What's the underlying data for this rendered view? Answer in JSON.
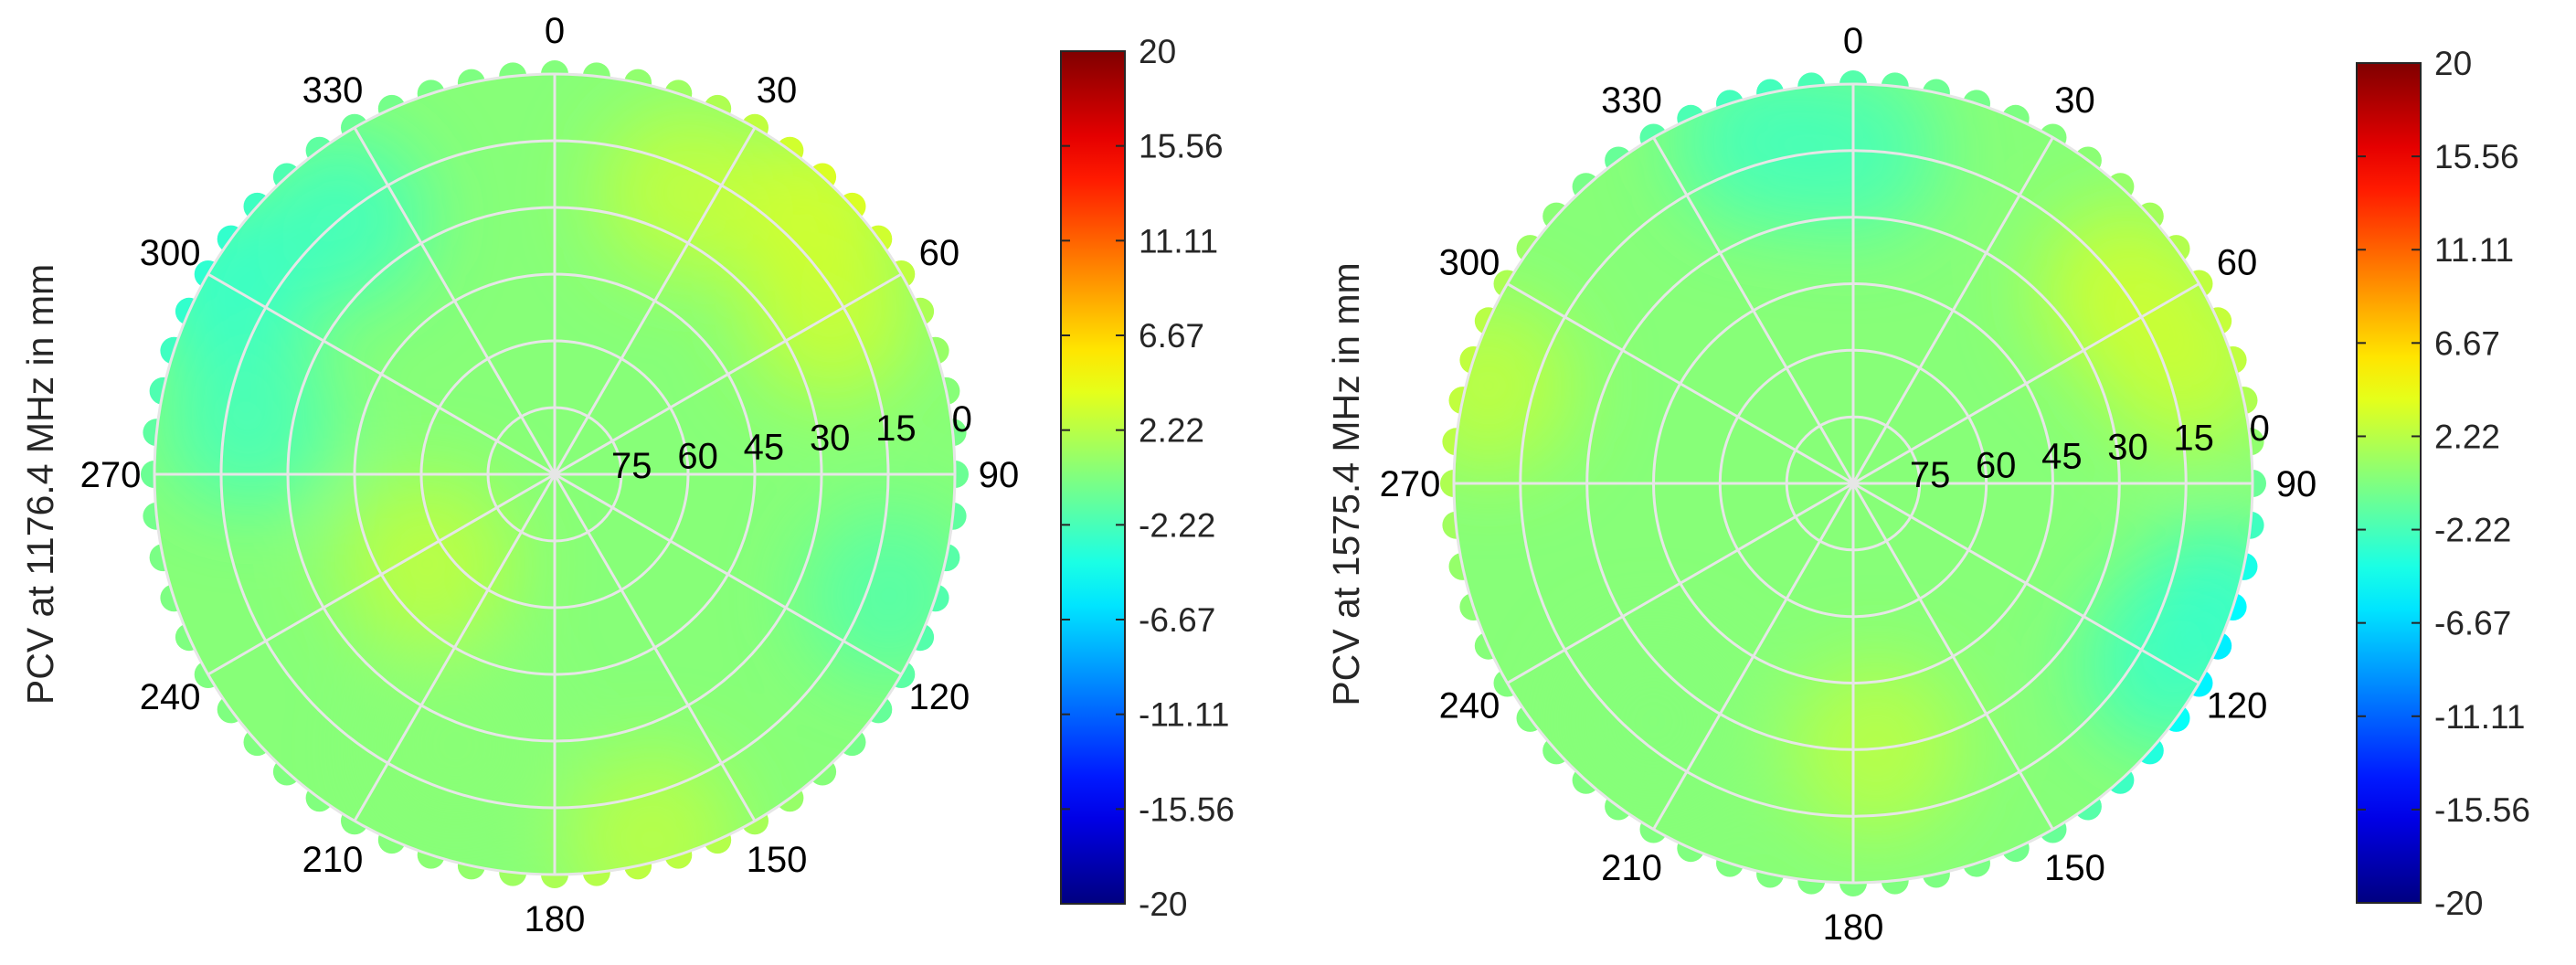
{
  "chart_data": [
    {
      "type": "heatmap",
      "subtype": "polar-skyplot",
      "ylabel": "PCV at 1176.4 MHz in mm",
      "azimuth_ticks": [
        "0",
        "30",
        "60",
        "90",
        "120",
        "150",
        "180",
        "210",
        "240",
        "270",
        "300",
        "330"
      ],
      "elevation_ticks": [
        "75",
        "60",
        "45",
        "30",
        "15",
        "0"
      ],
      "elevation_range": [
        0,
        90
      ],
      "grid": true,
      "colormap": "jet",
      "clim": [
        -20,
        20
      ],
      "colorbar_ticks": [
        "20",
        "15.56",
        "11.11",
        "6.67",
        "2.22",
        "-2.22",
        "-6.67",
        "-11.11",
        "-15.56",
        "-20"
      ],
      "colorbar_placement": "right",
      "value_range_approx": [
        -4,
        4
      ],
      "regions": [
        {
          "azimuth": 45,
          "elevation": 8,
          "value": 3.6
        },
        {
          "azimuth": 25,
          "elevation": 20,
          "value": 2.8
        },
        {
          "azimuth": 60,
          "elevation": 18,
          "value": 3.0
        },
        {
          "azimuth": 235,
          "elevation": 55,
          "value": 2.6
        },
        {
          "azimuth": 165,
          "elevation": 5,
          "value": 2.4
        },
        {
          "azimuth": 300,
          "elevation": 5,
          "value": -3.2
        },
        {
          "azimuth": 320,
          "elevation": 15,
          "value": -2.6
        },
        {
          "azimuth": 280,
          "elevation": 20,
          "value": -2.4
        },
        {
          "azimuth": 110,
          "elevation": 10,
          "value": -1.8
        },
        {
          "azimuth": 200,
          "elevation": 25,
          "value": 0.4
        }
      ]
    },
    {
      "type": "heatmap",
      "subtype": "polar-skyplot",
      "ylabel": "PCV at 1575.4 MHz in mm",
      "azimuth_ticks": [
        "0",
        "30",
        "60",
        "90",
        "120",
        "150",
        "180",
        "210",
        "240",
        "270",
        "300",
        "330"
      ],
      "elevation_ticks": [
        "75",
        "60",
        "45",
        "30",
        "15",
        "0"
      ],
      "elevation_range": [
        0,
        90
      ],
      "grid": true,
      "colormap": "jet",
      "clim": [
        -20,
        20
      ],
      "colorbar_ticks": [
        "20",
        "15.56",
        "11.11",
        "6.67",
        "2.22",
        "-2.22",
        "-6.67",
        "-11.11",
        "-15.56",
        "-20"
      ],
      "colorbar_placement": "right",
      "value_range_approx": [
        -4,
        4
      ],
      "regions": [
        {
          "azimuth": 55,
          "elevation": 15,
          "value": 3.2
        },
        {
          "azimuth": 70,
          "elevation": 10,
          "value": 3.0
        },
        {
          "azimuth": 285,
          "elevation": 5,
          "value": 2.6
        },
        {
          "azimuth": 175,
          "elevation": 30,
          "value": 2.4
        },
        {
          "azimuth": 110,
          "elevation": 3,
          "value": -3.4
        },
        {
          "azimuth": 120,
          "elevation": 8,
          "value": -2.6
        },
        {
          "azimuth": 345,
          "elevation": 10,
          "value": -2.4
        },
        {
          "azimuth": 0,
          "elevation": 15,
          "value": -2.2
        },
        {
          "azimuth": 220,
          "elevation": 20,
          "value": 0.2
        }
      ]
    }
  ]
}
